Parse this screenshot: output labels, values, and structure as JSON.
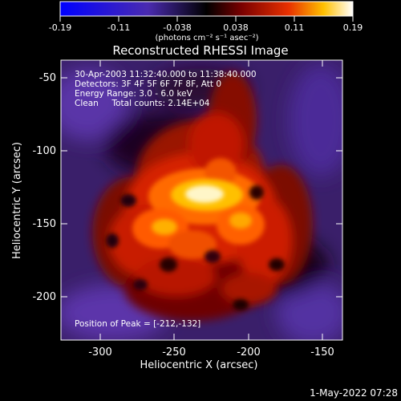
{
  "colorbar": {
    "ticks": [
      "-0.19",
      "-0.11",
      "-0.038",
      "0.038",
      "0.11",
      "0.19"
    ],
    "units_label": "(photons cm⁻² s⁻¹ asec⁻²)"
  },
  "plot": {
    "title": "Reconstructed RHESSI Image",
    "info_lines": [
      "30-Apr-2003 11:32:40.000 to 11:38:40.000",
      "Detectors: 3F 4F 5F 6F 7F 8F, Att 0",
      "Energy Range: 3.0 - 6.0 keV",
      "Clean     Total counts: 2.14E+04"
    ],
    "peak_label": "Position of Peak = [-212,-132]",
    "xlabel": "Heliocentric X (arcsec)",
    "ylabel": "Heliocentric Y (arcsec)",
    "xticks": [
      "-300",
      "-250",
      "-200",
      "-150"
    ],
    "yticks": [
      "-50",
      "-100",
      "-150",
      "-200"
    ]
  },
  "footer": {
    "timestamp": "1-May-2022 07:28"
  }
}
